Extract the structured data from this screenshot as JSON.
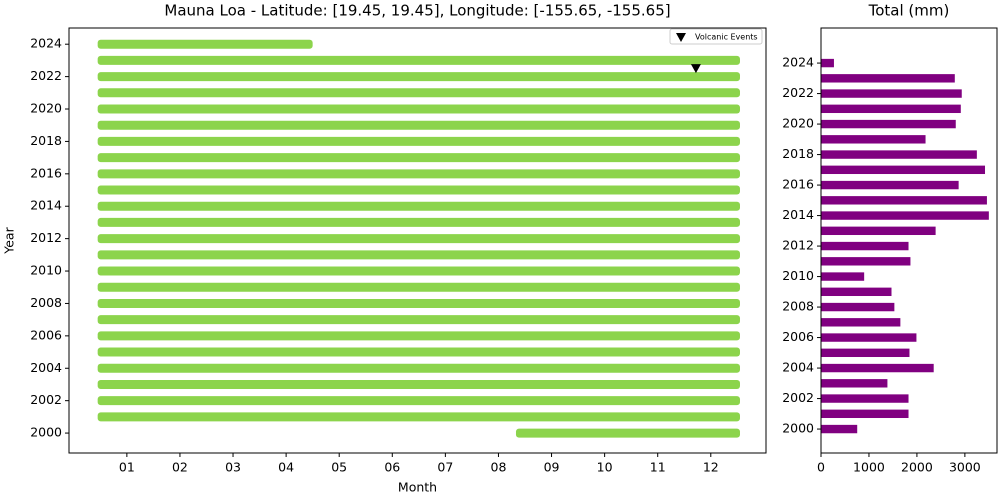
{
  "chart_data": [
    {
      "type": "timeline",
      "title": "Mauna Loa - Latitude: [19.45, 19.45], Longitude: [-155.65, -155.65]",
      "xlabel": "Month",
      "ylabel": "Year",
      "xlim": [
        -0.09,
        13.04
      ],
      "xticks": [
        {
          "value": 1,
          "label": "01"
        },
        {
          "value": 2,
          "label": "02"
        },
        {
          "value": 3,
          "label": "03"
        },
        {
          "value": 4,
          "label": "04"
        },
        {
          "value": 5,
          "label": "05"
        },
        {
          "value": 6,
          "label": "06"
        },
        {
          "value": 7,
          "label": "07"
        },
        {
          "value": 8,
          "label": "08"
        },
        {
          "value": 9,
          "label": "09"
        },
        {
          "value": 10,
          "label": "10"
        },
        {
          "value": 11,
          "label": "11"
        },
        {
          "value": 12,
          "label": "12"
        }
      ],
      "ylim": [
        1998.77,
        2025
      ],
      "yticks": [
        2000,
        2002,
        2004,
        2006,
        2008,
        2010,
        2012,
        2014,
        2016,
        2018,
        2020,
        2022,
        2024
      ],
      "color": "#8cd44c",
      "y": [
        2000,
        2001,
        2002,
        2003,
        2004,
        2005,
        2006,
        2007,
        2008,
        2009,
        2010,
        2011,
        2012,
        2013,
        2014,
        2015,
        2016,
        2017,
        2018,
        2019,
        2020,
        2021,
        2022,
        2023,
        2024
      ],
      "start": [
        8.33,
        0.45,
        0.45,
        0.45,
        0.45,
        0.45,
        0.45,
        0.45,
        0.45,
        0.45,
        0.45,
        0.45,
        0.45,
        0.45,
        0.45,
        0.45,
        0.45,
        0.45,
        0.45,
        0.45,
        0.45,
        0.45,
        0.45,
        0.45,
        0.45
      ],
      "end": [
        12.55,
        12.55,
        12.55,
        12.55,
        12.55,
        12.55,
        12.55,
        12.55,
        12.55,
        12.55,
        12.55,
        12.55,
        12.55,
        12.55,
        12.55,
        12.55,
        12.55,
        12.55,
        12.55,
        12.55,
        12.55,
        12.55,
        12.55,
        12.55,
        4.5
      ],
      "events": {
        "name": "Volcanic Events",
        "color": "#000000",
        "x": [
          11.72
        ],
        "y": [
          2022.52
        ]
      },
      "legend": "upper right"
    },
    {
      "type": "barh",
      "title": "Total (mm)",
      "xlim": [
        0,
        3670
      ],
      "xticks": [
        0,
        1000,
        2000,
        3000
      ],
      "ylim": [
        1998.43,
        2026.3
      ],
      "yticks": [
        2000,
        2002,
        2004,
        2006,
        2008,
        2010,
        2012,
        2014,
        2016,
        2018,
        2020,
        2022,
        2024
      ],
      "color": "#800080",
      "y": [
        2000,
        2001,
        2002,
        2003,
        2004,
        2005,
        2006,
        2007,
        2008,
        2009,
        2010,
        2011,
        2012,
        2013,
        2014,
        2015,
        2016,
        2017,
        2018,
        2019,
        2020,
        2021,
        2022,
        2023,
        2024
      ],
      "values": [
        755,
        1825,
        1825,
        1385,
        2350,
        1845,
        1990,
        1655,
        1530,
        1470,
        900,
        1865,
        1825,
        2390,
        3500,
        3460,
        2870,
        3420,
        3250,
        2180,
        2810,
        2915,
        2935,
        2790,
        270
      ]
    }
  ]
}
